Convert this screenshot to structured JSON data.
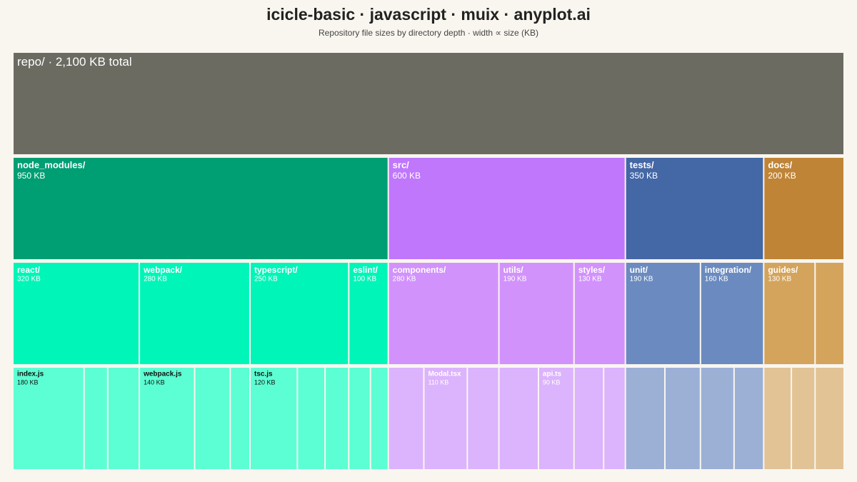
{
  "chart_data": {
    "type": "icicle",
    "title": "icicle-basic · javascript · muix · anyplot.ai",
    "subtitle": "Repository file sizes by directory depth · width ∝ size (KB)",
    "root": {
      "label": "repo/ · 2,100 KB total",
      "value": 2100,
      "color": "#6b6b62",
      "children": [
        {
          "name": "node_modules/",
          "value": 950,
          "value_label": "950 KB",
          "colors": [
            "#009e73",
            "#00f5b8",
            "#5cffd3"
          ],
          "children": [
            {
              "name": "react/",
              "value": 320,
              "value_label": "320 KB",
              "children": [
                {
                  "name": "index.js",
                  "value": 180,
                  "value_label": "180 KB"
                },
                {
                  "name": null,
                  "value": 60
                },
                {
                  "name": null,
                  "value": 80
                }
              ]
            },
            {
              "name": "webpack/",
              "value": 280,
              "value_label": "280 KB",
              "children": [
                {
                  "name": "webpack.js",
                  "value": 140,
                  "value_label": "140 KB"
                },
                {
                  "name": null,
                  "value": 90
                },
                {
                  "name": null,
                  "value": 50
                }
              ]
            },
            {
              "name": "typescript/",
              "value": 250,
              "value_label": "250 KB",
              "children": [
                {
                  "name": "tsc.js",
                  "value": 120,
                  "value_label": "120 KB"
                },
                {
                  "name": null,
                  "value": 70
                },
                {
                  "name": null,
                  "value": 60
                }
              ]
            },
            {
              "name": "eslint/",
              "value": 100,
              "value_label": "100 KB",
              "children": [
                {
                  "name": null,
                  "value": 55
                },
                {
                  "name": null,
                  "value": 45
                }
              ]
            }
          ]
        },
        {
          "name": "src/",
          "value": 600,
          "value_label": "600 KB",
          "colors": [
            "#c077fc",
            "#d292fc",
            "#dcb3fd"
          ],
          "children": [
            {
              "name": "components/",
              "value": 280,
              "value_label": "280 KB",
              "children": [
                {
                  "name": null,
                  "value": 90
                },
                {
                  "name": "Modal.tsx",
                  "value": 110,
                  "value_label": "110 KB"
                },
                {
                  "name": null,
                  "value": 80
                }
              ]
            },
            {
              "name": "utils/",
              "value": 190,
              "value_label": "190 KB",
              "children": [
                {
                  "name": null,
                  "value": 100
                },
                {
                  "name": "api.ts",
                  "value": 90,
                  "value_label": "90 KB"
                }
              ]
            },
            {
              "name": "styles/",
              "value": 130,
              "value_label": "130 KB",
              "children": [
                {
                  "name": null,
                  "value": 75
                },
                {
                  "name": null,
                  "value": 55
                }
              ]
            }
          ]
        },
        {
          "name": "tests/",
          "value": 350,
          "value_label": "350 KB",
          "colors": [
            "#4467a5",
            "#6b8bc0",
            "#9cb0d6"
          ],
          "children": [
            {
              "name": "unit/",
              "value": 190,
              "value_label": "190 KB",
              "children": [
                {
                  "name": null,
                  "value": 100
                },
                {
                  "name": null,
                  "value": 90
                }
              ]
            },
            {
              "name": "integration/",
              "value": 160,
              "value_label": "160 KB",
              "children": [
                {
                  "name": null,
                  "value": 85
                },
                {
                  "name": null,
                  "value": 75
                }
              ]
            }
          ]
        },
        {
          "name": "docs/",
          "value": 200,
          "value_label": "200 KB",
          "colors": [
            "#bf8436",
            "#d4a45c",
            "#e2c396"
          ],
          "children": [
            {
              "name": "guides/",
              "value": 130,
              "value_label": "130 KB",
              "children": [
                {
                  "name": null,
                  "value": 70
                },
                {
                  "name": null,
                  "value": 60
                }
              ]
            },
            {
              "name": null,
              "value": 70,
              "children": [
                {
                  "name": null,
                  "value": 70
                }
              ]
            }
          ]
        }
      ]
    }
  }
}
